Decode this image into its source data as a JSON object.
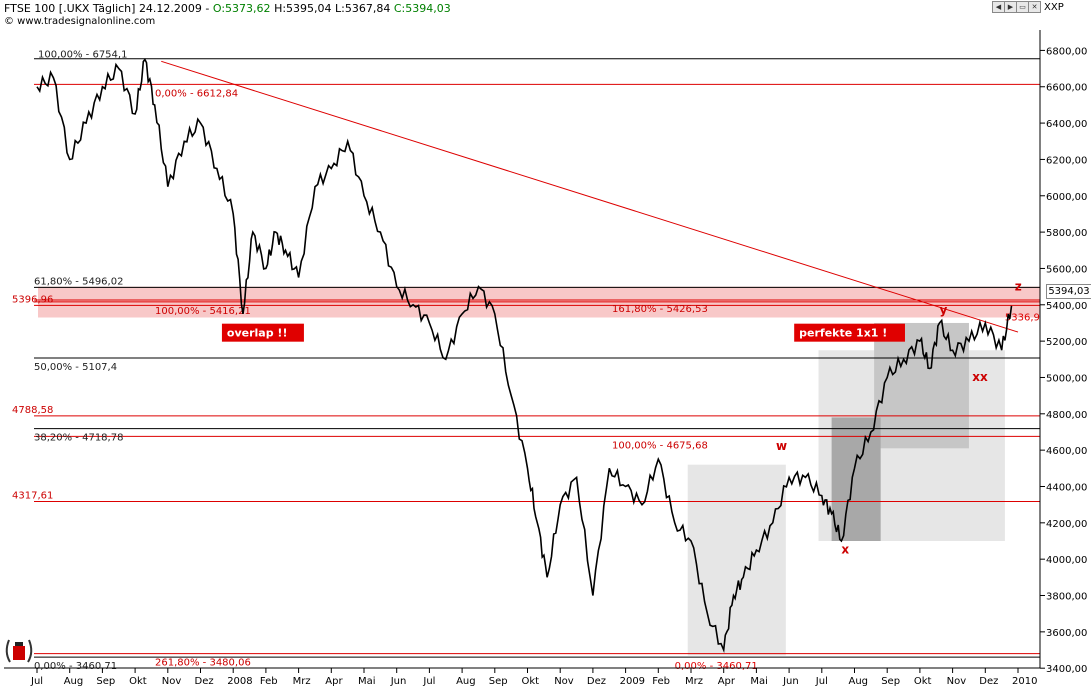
{
  "header": {
    "symbol": "FTSE 100 [.UKX  Täglich] 24.12.2009 - ",
    "open": "O:5373,62",
    "hl": "H:5395,04 L:5367,84",
    "close": "C:5394,03",
    "source": "© www.tradesignalonline.com",
    "axis_symbol": "XXP"
  },
  "price_tag": "5394,03",
  "chart_data": {
    "type": "line",
    "title": "FTSE 100 [.UKX  Täglich] 24.12.2009",
    "ylim": [
      3360,
      6860
    ],
    "y_ticks": [
      3400,
      3600,
      3800,
      4000,
      4200,
      4400,
      4600,
      4800,
      5000,
      5200,
      5400,
      5600,
      5800,
      6000,
      6200,
      6400,
      6600,
      6800
    ],
    "y_tick_labels": [
      "3400,00",
      "3600,00",
      "3800,00",
      "4000,00",
      "4200,00",
      "4400,00",
      "4600,00",
      "4800,00",
      "5000,00",
      "5200,00",
      "5400,00",
      "5600,00",
      "5800,00",
      "6000,00",
      "6200,00",
      "6400,00",
      "6600,00",
      "6800,00"
    ],
    "x_labels": [
      "Jul",
      "Aug",
      "Sep",
      "Okt",
      "Nov",
      "Dez",
      "2008",
      "Feb",
      "Mrz",
      "Apr",
      "Mai",
      "Jun",
      "Jul",
      "Aug",
      "Sep",
      "Okt",
      "Nov",
      "Dez",
      "2009",
      "Feb",
      "Mrz",
      "Apr",
      "Mai",
      "Jun",
      "Jul",
      "Aug",
      "Sep",
      "Okt",
      "Nov",
      "Dez",
      "2010"
    ],
    "series": [
      {
        "name": "FTSE 100",
        "x": [
          0,
          0.5,
          1,
          1.5,
          2,
          2.5,
          3,
          3.3,
          3.6,
          4,
          4.5,
          5,
          5.5,
          6,
          6.3,
          6.6,
          7,
          7.3,
          7.6,
          8,
          8.5,
          9,
          9.5,
          10,
          10.5,
          11,
          11.5,
          12,
          12.5,
          13,
          13.5,
          14,
          14.5,
          15,
          15.3,
          15.6,
          16,
          16.5,
          17,
          17.5,
          18,
          18.5,
          19,
          19.5,
          20,
          20.5,
          21,
          21.3,
          21.6,
          22,
          22.5,
          23,
          23.5,
          24,
          24.3,
          24.6,
          25,
          25.5,
          26,
          26.5,
          27,
          27.3,
          27.6,
          28,
          28.5,
          29,
          29.5,
          29.8
        ],
        "values": [
          6600,
          6650,
          6200,
          6400,
          6600,
          6700,
          6450,
          6750,
          6500,
          6050,
          6300,
          6400,
          6150,
          5900,
          5350,
          5800,
          5600,
          5800,
          5700,
          5550,
          6050,
          6150,
          6300,
          6000,
          5800,
          5500,
          5400,
          5300,
          5100,
          5350,
          5500,
          5350,
          4900,
          4500,
          4200,
          3900,
          4300,
          4450,
          3800,
          4500,
          4400,
          4300,
          4550,
          4200,
          4100,
          3700,
          3500,
          3800,
          3900,
          4050,
          4200,
          4450,
          4450,
          4350,
          4250,
          4100,
          4500,
          4700,
          5000,
          5100,
          5200,
          5050,
          5300,
          5150,
          5200,
          5300,
          5150,
          5394
        ]
      }
    ],
    "hlines": [
      {
        "value": 6754.1,
        "color": "#000000",
        "label": "100,00% - 6754,1"
      },
      {
        "value": 6612.84,
        "color": "#dd0000",
        "label": "0,00% - 6612,84"
      },
      {
        "value": 5496.02,
        "color": "#000000",
        "label": "61,80% - 5496,02"
      },
      {
        "value": 5416.21,
        "color": "#dd0000",
        "label": "100,00% - 5416,21"
      },
      {
        "value": 5426.53,
        "color": "#dd0000",
        "label": "161,80% - 5426,53"
      },
      {
        "value": 5396.96,
        "color": "#dd0000",
        "label": "5396,96"
      },
      {
        "value": 5107.4,
        "color": "#000000",
        "label": "50,00% - 5107,4"
      },
      {
        "value": 4788.58,
        "color": "#dd0000",
        "label": "4788,58"
      },
      {
        "value": 4718.78,
        "color": "#000000",
        "label": "38,20% - 4718,78"
      },
      {
        "value": 4675.68,
        "color": "#dd0000",
        "label": "100,00% - 4675,68"
      },
      {
        "value": 4317.61,
        "color": "#dd0000",
        "label": "4317,61"
      },
      {
        "value": 3480.06,
        "color": "#dd0000",
        "label": "261,80% - 3480,06"
      },
      {
        "value": 3460.71,
        "color": "#000000",
        "label": "0,00% - 3460,71"
      }
    ],
    "extra_labels": [
      {
        "text": "0,00% - 3460,71",
        "color": "#dd0000",
        "month": 19.5,
        "value": 3460.71
      },
      {
        "text": "5336,9",
        "color": "#dd0000",
        "month": 29.6,
        "value": 5336.9
      }
    ],
    "trendline": {
      "from": [
        3.8,
        6740
      ],
      "to": [
        30.0,
        5250
      ]
    },
    "wave_labels": [
      {
        "text": "w",
        "month": 22.6,
        "value": 4600
      },
      {
        "text": "x",
        "month": 24.6,
        "value": 4030
      },
      {
        "text": "y",
        "month": 27.6,
        "value": 5350
      },
      {
        "text": "xx",
        "month": 28.6,
        "value": 4980
      },
      {
        "text": "z",
        "month": 29.9,
        "value": 5480
      }
    ],
    "callouts": [
      {
        "text": "overlap !!",
        "month": 5.9,
        "value": 5230
      },
      {
        "text": "perfekte 1x1 !",
        "month": 23.4,
        "value": 5230
      }
    ],
    "boxes": [
      {
        "m0": 19.9,
        "m1": 22.9,
        "v0": 3470,
        "v1": 4520,
        "fill": "#e6e6e6"
      },
      {
        "m0": 23.9,
        "m1": 29.6,
        "v0": 4100,
        "v1": 5150,
        "fill": "#e6e6e6"
      },
      {
        "m0": 25.6,
        "m1": 28.5,
        "v0": 4610,
        "v1": 5300,
        "fill": "#c6c6c6"
      },
      {
        "m0": 24.3,
        "m1": 25.8,
        "v0": 4100,
        "v1": 4780,
        "fill": "#a8a8a8"
      }
    ],
    "resistance_zone": [
      5330,
      5500
    ]
  }
}
